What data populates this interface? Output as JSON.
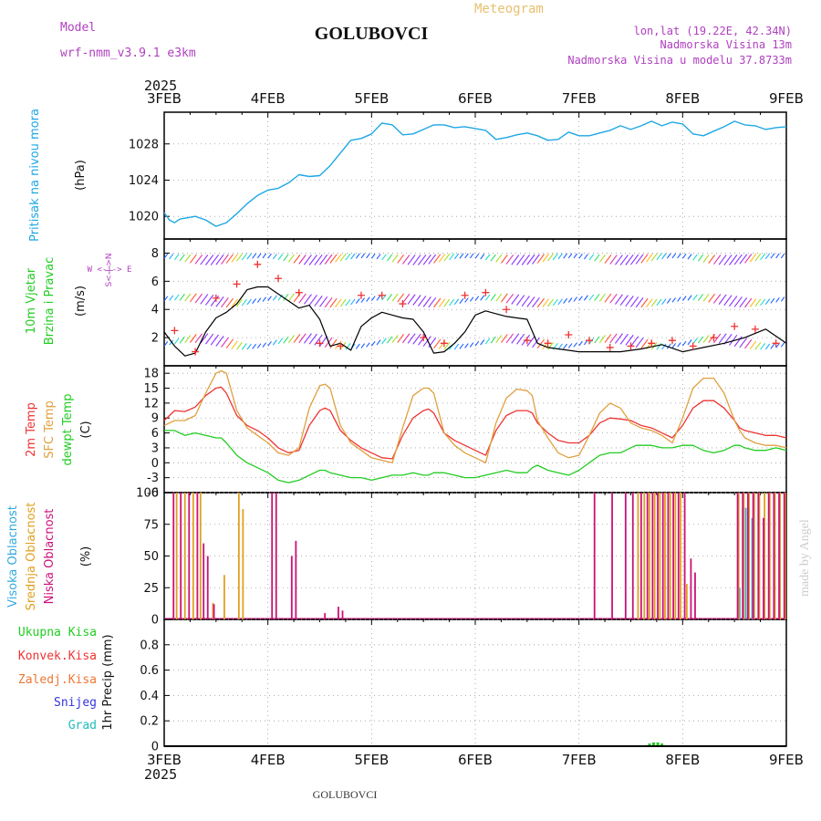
{
  "header": {
    "meteogram_label": "Meteogram",
    "model_label": "Model",
    "model_name": "wrf-nmm_v3.9.1 e3km",
    "station": "GOLUBOVCI",
    "lonlat": "lon,lat (19.22E, 42.34N)",
    "elevation": "Nadmorska Visina 13m",
    "model_elevation": "Nadmorska Visina u modelu 37.8733m",
    "year": "2025",
    "credit": "made by Angel",
    "footer_station": "GOLUBOVCI"
  },
  "colors": {
    "pressure": "#1ea7e4",
    "wind_speed": "#000000",
    "gust_marker": "#ee3333",
    "temp_2m": "#ee3333",
    "temp_sfc": "#e0a040",
    "dewpoint": "#22cc22",
    "cloud_high": "#33aadd",
    "cloud_mid": "#e0a020",
    "cloud_low": "#cc1177",
    "precip_total": "#22cc22",
    "title_purple": "#b040c0",
    "title_orange": "#e8c070"
  },
  "chart_data": [
    {
      "type": "line",
      "panel": "pressure",
      "ylabel": "Pritisak na nivou mora",
      "unit": "(hPa)",
      "x_ticks": [
        "3FEB",
        "4FEB",
        "5FEB",
        "6FEB",
        "7FEB",
        "8FEB",
        "9FEB"
      ],
      "ylim": [
        1017.5,
        1031.5
      ],
      "yticks": [
        1020,
        1024,
        1028
      ],
      "series": [
        {
          "name": "SLP",
          "x": [
            0,
            0.05,
            0.1,
            0.15,
            0.2,
            0.3,
            0.4,
            0.5,
            0.6,
            0.7,
            0.8,
            0.9,
            1.0,
            1.1,
            1.2,
            1.3,
            1.4,
            1.5,
            1.6,
            1.7,
            1.8,
            1.9,
            2.0,
            2.1,
            2.2,
            2.3,
            2.4,
            2.5,
            2.6,
            2.7,
            2.8,
            2.9,
            3.0,
            3.1,
            3.2,
            3.3,
            3.4,
            3.5,
            3.6,
            3.7,
            3.8,
            3.9,
            4.0,
            4.1,
            4.2,
            4.3,
            4.4,
            4.5,
            4.6,
            4.7,
            4.8,
            4.9,
            5.0,
            5.1,
            5.2,
            5.3,
            5.4,
            5.5,
            5.6,
            5.7,
            5.8,
            5.9,
            6.0
          ],
          "values": [
            1020.4,
            1019.6,
            1019.3,
            1019.7,
            1019.8,
            1020.0,
            1019.6,
            1018.9,
            1019.3,
            1020.3,
            1021.4,
            1022.3,
            1022.9,
            1023.1,
            1023.7,
            1024.6,
            1024.4,
            1024.5,
            1025.6,
            1027.0,
            1028.4,
            1028.6,
            1029.1,
            1030.3,
            1030.1,
            1029.0,
            1029.1,
            1029.6,
            1030.1,
            1030.1,
            1029.8,
            1029.9,
            1029.7,
            1029.5,
            1028.5,
            1028.7,
            1029.0,
            1029.2,
            1028.9,
            1028.4,
            1028.5,
            1029.3,
            1028.9,
            1028.9,
            1029.2,
            1029.5,
            1030.0,
            1029.6,
            1030.0,
            1030.5,
            1030.0,
            1030.4,
            1030.2,
            1029.1,
            1028.9,
            1029.4,
            1029.9,
            1030.5,
            1030.1,
            1030.0,
            1029.6,
            1029.8,
            1029.9
          ]
        }
      ]
    },
    {
      "type": "line",
      "panel": "wind",
      "ylabel": "10m Vjetar Brzina i Pravac",
      "unit": "(m/s)",
      "compass": "W <-|-> E",
      "compass_vertical": "S<-|->N",
      "ylim": [
        0,
        9
      ],
      "yticks": [
        2,
        4,
        6,
        8
      ],
      "series": [
        {
          "name": "speed",
          "x": [
            0,
            0.1,
            0.2,
            0.3,
            0.4,
            0.5,
            0.6,
            0.7,
            0.8,
            0.9,
            1.0,
            1.1,
            1.2,
            1.3,
            1.4,
            1.5,
            1.6,
            1.7,
            1.8,
            1.9,
            2.0,
            2.1,
            2.2,
            2.3,
            2.4,
            2.5,
            2.6,
            2.7,
            2.8,
            2.9,
            3.0,
            3.1,
            3.2,
            3.3,
            3.4,
            3.5,
            3.6,
            3.7,
            3.8,
            3.9,
            4.0,
            4.2,
            4.4,
            4.6,
            4.8,
            5.0,
            5.2,
            5.4,
            5.6,
            5.8,
            6.0
          ],
          "values": [
            2.4,
            1.4,
            0.7,
            0.9,
            2.4,
            3.4,
            3.8,
            4.4,
            5.4,
            5.6,
            5.6,
            5.1,
            4.6,
            4.1,
            4.3,
            3.3,
            1.4,
            1.6,
            1.1,
            2.8,
            3.4,
            3.8,
            3.6,
            3.4,
            3.3,
            2.4,
            0.9,
            1.0,
            1.6,
            2.4,
            3.6,
            3.9,
            3.7,
            3.5,
            3.4,
            3.3,
            1.6,
            1.3,
            1.2,
            1.1,
            1.0,
            1.0,
            1.0,
            1.2,
            1.5,
            1.0,
            1.3,
            1.6,
            2.0,
            2.6,
            1.6
          ]
        },
        {
          "name": "gust",
          "x": [
            0.1,
            0.3,
            0.5,
            0.7,
            0.9,
            1.1,
            1.3,
            1.5,
            1.7,
            1.9,
            2.1,
            2.3,
            2.5,
            2.7,
            2.9,
            3.1,
            3.3,
            3.5,
            3.7,
            3.9,
            4.1,
            4.3,
            4.5,
            4.7,
            4.9,
            5.1,
            5.3,
            5.5,
            5.7,
            5.9
          ],
          "values": [
            2.5,
            1.0,
            4.8,
            5.8,
            7.2,
            6.2,
            5.2,
            1.6,
            1.4,
            5.0,
            5.0,
            4.4,
            2.0,
            1.6,
            5.0,
            5.2,
            4.0,
            1.8,
            1.6,
            2.2,
            1.8,
            1.3,
            1.4,
            1.6,
            1.8,
            1.4,
            2.0,
            2.8,
            2.6,
            1.6
          ]
        }
      ]
    },
    {
      "type": "line",
      "panel": "temperature",
      "ylabel": [
        "2m Temp",
        "SFC Temp",
        "dewpt Temp"
      ],
      "unit": "(C)",
      "ylim": [
        -6,
        19.5
      ],
      "yticks": [
        -6,
        -3,
        0,
        3,
        6,
        9,
        12,
        15,
        18
      ],
      "x": [
        0,
        0.1,
        0.2,
        0.3,
        0.4,
        0.5,
        0.55,
        0.6,
        0.7,
        0.8,
        0.9,
        1.0,
        1.1,
        1.2,
        1.3,
        1.4,
        1.5,
        1.55,
        1.6,
        1.7,
        1.8,
        1.9,
        2.0,
        2.1,
        2.2,
        2.3,
        2.4,
        2.5,
        2.55,
        2.6,
        2.7,
        2.8,
        2.9,
        3.0,
        3.1,
        3.2,
        3.3,
        3.4,
        3.5,
        3.55,
        3.6,
        3.7,
        3.8,
        3.9,
        4.0,
        4.1,
        4.2,
        4.3,
        4.4,
        4.5,
        4.55,
        4.6,
        4.7,
        4.8,
        4.9,
        5.0,
        5.1,
        5.2,
        5.3,
        5.4,
        5.5,
        5.55,
        5.6,
        5.7,
        5.8,
        5.9,
        6.0
      ],
      "series": [
        {
          "name": "2m Temp",
          "values": [
            8.5,
            10.5,
            10.3,
            11.2,
            13.5,
            15.0,
            15.2,
            14.0,
            9.5,
            7.5,
            6.5,
            5.0,
            3.0,
            2.0,
            2.5,
            7.5,
            10.5,
            11.0,
            10.5,
            6.5,
            4.5,
            3.0,
            2.0,
            1.0,
            0.8,
            5.5,
            9.0,
            10.5,
            10.8,
            10.0,
            6.0,
            4.5,
            3.5,
            2.5,
            1.5,
            6.5,
            9.5,
            10.5,
            10.5,
            10.0,
            8.0,
            6.0,
            4.5,
            4.0,
            4.0,
            5.5,
            8.0,
            9.0,
            8.8,
            8.5,
            8.0,
            7.5,
            7.0,
            6.0,
            5.0,
            7.5,
            11.0,
            12.5,
            12.5,
            11.0,
            8.5,
            7.0,
            6.5,
            6.0,
            5.5,
            5.5,
            5.0
          ]
        },
        {
          "name": "SFC Temp",
          "values": [
            7.5,
            8.5,
            8.5,
            9.5,
            14.0,
            18.0,
            18.5,
            18.0,
            10.5,
            7.0,
            5.5,
            4.0,
            2.0,
            1.5,
            3.0,
            11.0,
            15.5,
            15.8,
            15.0,
            7.5,
            4.0,
            2.5,
            1.0,
            0.5,
            0.0,
            7.0,
            13.5,
            15.0,
            15.0,
            14.0,
            6.0,
            3.5,
            2.0,
            1.0,
            0.0,
            8.0,
            13.0,
            14.8,
            14.5,
            13.5,
            8.5,
            5.0,
            2.0,
            1.0,
            1.5,
            5.5,
            10.0,
            12.0,
            11.0,
            8.0,
            7.5,
            7.0,
            6.5,
            5.5,
            4.0,
            9.0,
            15.0,
            17.0,
            17.0,
            14.0,
            8.5,
            6.5,
            5.0,
            4.0,
            3.5,
            3.5,
            3.0
          ]
        },
        {
          "name": "dewpt Temp",
          "values": [
            6.5,
            6.5,
            5.5,
            6.0,
            5.5,
            5.0,
            5.0,
            4.0,
            1.5,
            0.0,
            -1.0,
            -2.0,
            -3.5,
            -4.0,
            -3.5,
            -2.5,
            -1.5,
            -1.5,
            -2.0,
            -2.5,
            -3.0,
            -3.0,
            -3.5,
            -3.0,
            -2.5,
            -2.5,
            -2.0,
            -2.5,
            -2.5,
            -2.0,
            -2.0,
            -2.5,
            -3.0,
            -3.0,
            -2.5,
            -2.0,
            -1.5,
            -2.0,
            -2.0,
            -1.0,
            -0.5,
            -1.5,
            -2.0,
            -2.5,
            -1.5,
            0.0,
            1.5,
            2.0,
            2.0,
            3.0,
            3.5,
            3.5,
            3.5,
            3.0,
            3.0,
            3.5,
            3.5,
            2.5,
            2.0,
            2.5,
            3.5,
            3.5,
            3.0,
            2.5,
            2.5,
            3.0,
            2.5
          ]
        }
      ]
    },
    {
      "type": "bar",
      "panel": "cloud",
      "ylabel": [
        "Visoka Oblacnost",
        "Srednja Oblacnost",
        "Niska Oblacnost"
      ],
      "unit": "(%)",
      "ylim": [
        0,
        100
      ],
      "yticks": [
        0,
        25,
        50,
        75,
        100
      ],
      "series": [
        {
          "name": "Visoka Oblacnost",
          "x": [
            5.55,
            5.58,
            5.61,
            5.64,
            5.67
          ],
          "values": [
            25,
            88,
            88,
            88,
            80
          ]
        },
        {
          "name": "Srednja Oblacnost",
          "x": [
            0.12,
            0.2,
            0.28,
            0.35,
            0.47,
            0.58,
            0.72,
            0.76,
            4.57,
            4.63,
            4.68,
            4.73,
            4.78,
            4.83,
            4.88,
            4.93,
            4.98,
            5.04,
            5.54,
            5.59,
            5.64,
            5.69,
            5.74,
            5.79,
            5.84,
            5.89,
            5.94,
            5.99
          ],
          "values": [
            100,
            100,
            100,
            100,
            13,
            35,
            100,
            87,
            100,
            100,
            100,
            100,
            100,
            100,
            100,
            100,
            100,
            28,
            100,
            100,
            100,
            100,
            100,
            100,
            100,
            100,
            100,
            100
          ]
        },
        {
          "name": "Niska Oblacnost",
          "x": [
            0.09,
            0.16,
            0.24,
            0.32,
            0.38,
            0.42,
            0.48,
            1.04,
            1.08,
            1.23,
            1.27,
            1.55,
            1.68,
            1.72,
            4.15,
            4.32,
            4.45,
            4.52,
            4.6,
            4.66,
            4.71,
            4.76,
            4.81,
            4.86,
            4.91,
            4.96,
            5.02,
            5.08,
            5.12,
            5.53,
            5.58,
            5.63,
            5.68,
            5.73,
            5.78,
            5.83,
            5.88,
            5.93,
            5.98
          ],
          "values": [
            100,
            100,
            100,
            100,
            60,
            50,
            12,
            100,
            100,
            50,
            62,
            5,
            10,
            7,
            100,
            100,
            100,
            100,
            100,
            100,
            100,
            100,
            100,
            100,
            100,
            100,
            100,
            48,
            37,
            100,
            100,
            100,
            100,
            100,
            80,
            100,
            100,
            100,
            100
          ]
        }
      ]
    },
    {
      "type": "bar",
      "panel": "precipitation",
      "ylabel": "1hr Precip",
      "unit": "(mm)",
      "legend": [
        "Ukupna Kisa",
        "Konvek.Kisa",
        "Zaledj.Kisa",
        "Snijeg",
        "Grad"
      ],
      "ylim": [
        0,
        1.0
      ],
      "yticks": [
        0,
        0.2,
        0.4,
        0.6,
        0.8
      ],
      "series": [
        {
          "name": "Ukupna Kisa",
          "x": [
            4.68,
            4.72,
            4.76,
            4.8
          ],
          "values": [
            0.02,
            0.03,
            0.03,
            0.01
          ]
        }
      ]
    }
  ]
}
